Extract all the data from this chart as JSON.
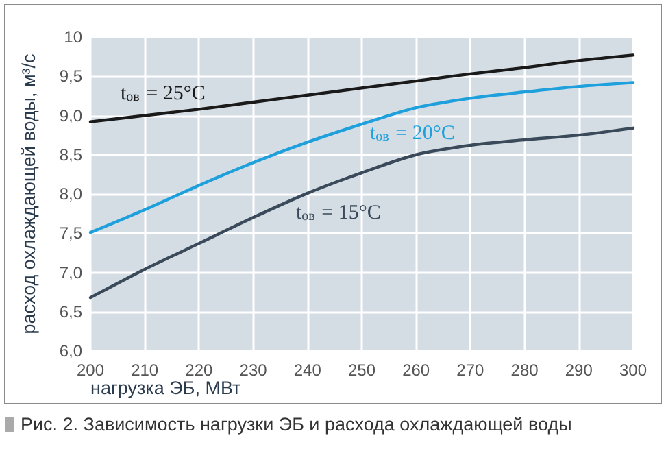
{
  "chart_data": {
    "type": "line",
    "xlabel": "нагрузка ЭБ, МВт",
    "ylabel": "расход охлаждающей воды, м³/с",
    "x": [
      200,
      210,
      220,
      230,
      240,
      250,
      260,
      270,
      280,
      290,
      300
    ],
    "series": [
      {
        "color": "#1a1a1a",
        "values": [
          8.92,
          9.0,
          9.08,
          9.17,
          9.26,
          9.35,
          9.44,
          9.53,
          9.61,
          9.7,
          9.77
        ]
      },
      {
        "color": "#1ea0dc",
        "values": [
          7.51,
          7.8,
          8.11,
          8.4,
          8.66,
          8.89,
          9.1,
          9.22,
          9.3,
          9.37,
          9.42
        ]
      },
      {
        "color": "#3a4a5a",
        "values": [
          6.68,
          7.04,
          7.37,
          7.7,
          8.01,
          8.27,
          8.5,
          8.62,
          8.69,
          8.75,
          8.84
        ]
      }
    ],
    "xlim": [
      200,
      300
    ],
    "xticks": [
      200,
      210,
      220,
      230,
      240,
      250,
      260,
      270,
      280,
      290,
      300
    ],
    "ylim": [
      6,
      10
    ],
    "yticks": [
      {
        "value": 6,
        "label": "6,0"
      },
      {
        "value": 6.5,
        "label": "6,5"
      },
      {
        "value": 7,
        "label": "7,0"
      },
      {
        "value": 7.5,
        "label": "7,5"
      },
      {
        "value": 8,
        "label": "8,0"
      },
      {
        "value": 8.5,
        "label": "8,5"
      },
      {
        "value": 9,
        "label": "9,0"
      },
      {
        "value": 9.5,
        "label": "9,5"
      },
      {
        "value": 10,
        "label": "10"
      }
    ],
    "grid": true,
    "marker": "none",
    "line_style": "solid",
    "annotations": [
      "t$_{ов}$ = 25°C",
      "t$_{ов}$ = 20°C",
      "t$_{ов}$ = 15°C",
      "Рис. 2. Зависимость нагрузки ЭБ и расхода охлаждающей воды"
    ]
  }
}
